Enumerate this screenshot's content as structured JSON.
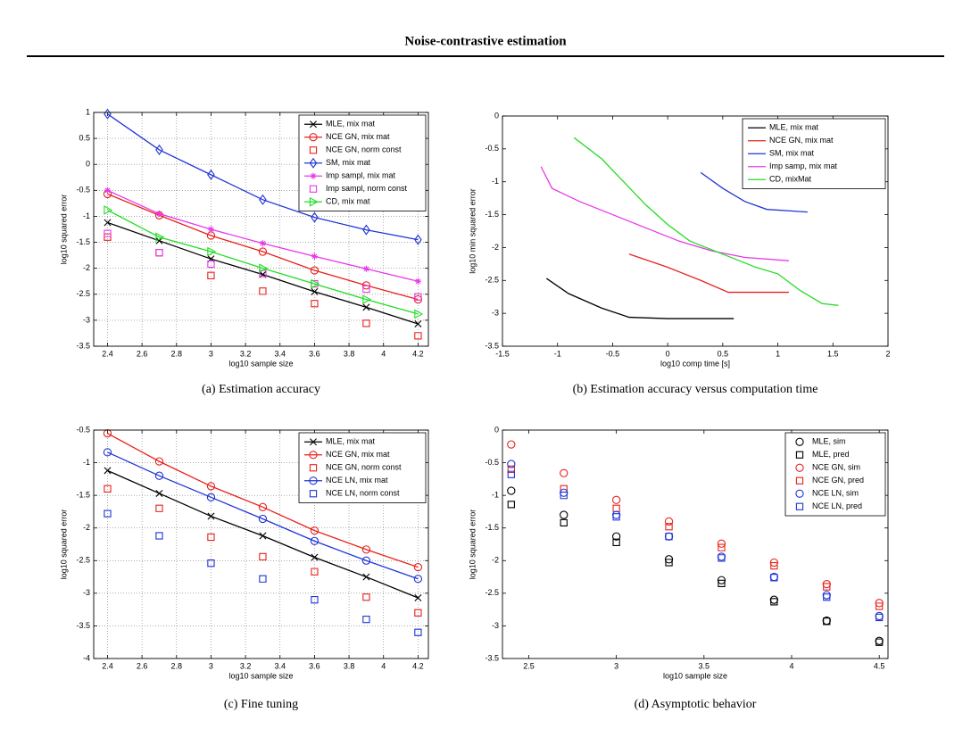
{
  "header": {
    "title": "Noise-contrastive estimation"
  },
  "chart_data": [
    {
      "type": "line",
      "caption": "(a) Estimation accuracy",
      "xlabel": "log10 sample size",
      "ylabel": "log10 squared error",
      "x": [
        2.4,
        2.7,
        3,
        3.3,
        3.6,
        3.9,
        4.2
      ],
      "xlim": [
        2.32,
        4.26
      ],
      "xticks": [
        2.4,
        2.6,
        2.8,
        3,
        3.2,
        3.4,
        3.6,
        3.8,
        4,
        4.2
      ],
      "ylim": [
        -3.5,
        1
      ],
      "yticks": [
        -3.5,
        -3,
        -2.5,
        -2,
        -1.5,
        -1,
        -0.5,
        0,
        0.5,
        1
      ],
      "grid": true,
      "legend": "northeast",
      "series": [
        {
          "name": "MLE, mix mat",
          "color": "#000000",
          "marker": "x",
          "line": true,
          "values": [
            -1.12,
            -1.47,
            -1.82,
            -2.12,
            -2.45,
            -2.75,
            -3.07
          ]
        },
        {
          "name": "NCE GN, mix mat",
          "color": "#e8211b",
          "marker": "o",
          "line": true,
          "values": [
            -0.57,
            -0.98,
            -1.37,
            -1.68,
            -2.04,
            -2.33,
            -2.6
          ]
        },
        {
          "name": "NCE GN, norm const",
          "color": "#e8211b",
          "marker": "s",
          "line": false,
          "values": [
            -1.4,
            -1.7,
            -2.14,
            -2.44,
            -2.68,
            -3.06,
            -3.3
          ]
        },
        {
          "name": "SM, mix mat",
          "color": "#1f35d6",
          "marker": "d",
          "line": true,
          "values": [
            0.97,
            0.28,
            -0.2,
            -0.68,
            -1.02,
            -1.26,
            -1.45
          ]
        },
        {
          "name": "Imp sampl, mix mat",
          "color": "#e838e8",
          "marker": "*",
          "line": true,
          "values": [
            -0.5,
            -0.95,
            -1.25,
            -1.52,
            -1.77,
            -2.01,
            -2.25
          ]
        },
        {
          "name": "Imp sampl, norm const",
          "color": "#e838e8",
          "marker": "s",
          "line": false,
          "values": [
            -1.33,
            -1.7,
            -1.92,
            -2.1,
            -2.3,
            -2.4,
            -2.55
          ]
        },
        {
          "name": "CD, mix mat",
          "color": "#22dd22",
          "marker": ">",
          "line": true,
          "values": [
            -0.88,
            -1.4,
            -1.68,
            -2.0,
            -2.3,
            -2.6,
            -2.88
          ]
        }
      ]
    },
    {
      "type": "line",
      "caption": "(b) Estimation accuracy versus computation time",
      "xlabel": "log10 comp time [s]",
      "ylabel": "log10 min squared error",
      "xlim": [
        -1.5,
        2
      ],
      "xticks": [
        -1.5,
        -1,
        -0.5,
        0,
        0.5,
        1,
        1.5,
        2
      ],
      "ylim": [
        -3.5,
        0
      ],
      "yticks": [
        -3.5,
        -3,
        -2.5,
        -2,
        -1.5,
        -1,
        -0.5,
        0
      ],
      "grid": false,
      "legend": "northeast",
      "series": [
        {
          "name": "MLE, mix mat",
          "color": "#000000",
          "line": true,
          "x": [
            -1.1,
            -0.9,
            -0.6,
            -0.35,
            0,
            0.6
          ],
          "values": [
            -2.47,
            -2.7,
            -2.92,
            -3.06,
            -3.08,
            -3.08
          ]
        },
        {
          "name": "NCE GN, mix mat",
          "color": "#e8211b",
          "line": true,
          "x": [
            -0.35,
            0,
            0.3,
            0.55,
            1.1
          ],
          "values": [
            -2.1,
            -2.3,
            -2.5,
            -2.68,
            -2.68
          ]
        },
        {
          "name": "SM, mix mat",
          "color": "#1f35d6",
          "line": true,
          "x": [
            0.3,
            0.5,
            0.7,
            0.9,
            1.27
          ],
          "values": [
            -0.86,
            -1.1,
            -1.3,
            -1.42,
            -1.46
          ]
        },
        {
          "name": "Imp samp, mix mat",
          "color": "#e838e8",
          "line": true,
          "x": [
            -1.15,
            -1.05,
            -0.8,
            -0.5,
            -0.2,
            0.1,
            0.4,
            0.7,
            1.1
          ],
          "values": [
            -0.77,
            -1.1,
            -1.3,
            -1.5,
            -1.7,
            -1.9,
            -2.05,
            -2.15,
            -2.2
          ]
        },
        {
          "name": "CD, mixMat",
          "color": "#22dd22",
          "line": true,
          "x": [
            -0.85,
            -0.6,
            -0.4,
            -0.2,
            0,
            0.2,
            0.5,
            0.8,
            1.0,
            1.2,
            1.4,
            1.55
          ],
          "values": [
            -0.33,
            -0.65,
            -1.0,
            -1.35,
            -1.65,
            -1.9,
            -2.1,
            -2.3,
            -2.4,
            -2.65,
            -2.85,
            -2.88
          ]
        }
      ]
    },
    {
      "type": "line",
      "caption": "(c) Fine tuning",
      "xlabel": "log10 sample size",
      "ylabel": "log10 squared error",
      "x": [
        2.4,
        2.7,
        3,
        3.3,
        3.6,
        3.9,
        4.2
      ],
      "xlim": [
        2.32,
        4.26
      ],
      "xticks": [
        2.4,
        2.6,
        2.8,
        3,
        3.2,
        3.4,
        3.6,
        3.8,
        4,
        4.2
      ],
      "ylim": [
        -4,
        -0.5
      ],
      "yticks": [
        -4,
        -3.5,
        -3,
        -2.5,
        -2,
        -1.5,
        -1,
        -0.5
      ],
      "grid": true,
      "legend": "northeast",
      "series": [
        {
          "name": "MLE, mix mat",
          "color": "#000000",
          "marker": "x",
          "line": true,
          "values": [
            -1.12,
            -1.47,
            -1.82,
            -2.12,
            -2.45,
            -2.75,
            -3.07
          ]
        },
        {
          "name": "NCE GN, mix mat",
          "color": "#e8211b",
          "marker": "o",
          "line": true,
          "values": [
            -0.55,
            -0.98,
            -1.36,
            -1.68,
            -2.04,
            -2.33,
            -2.6
          ]
        },
        {
          "name": "NCE GN, norm const",
          "color": "#e8211b",
          "marker": "s",
          "line": false,
          "values": [
            -1.4,
            -1.7,
            -2.14,
            -2.44,
            -2.67,
            -3.06,
            -3.3
          ]
        },
        {
          "name": "NCE LN, mix mat",
          "color": "#1f35d6",
          "marker": "o",
          "line": true,
          "values": [
            -0.84,
            -1.2,
            -1.53,
            -1.86,
            -2.2,
            -2.5,
            -2.78
          ]
        },
        {
          "name": "NCE LN, norm const",
          "color": "#1f35d6",
          "marker": "s",
          "line": false,
          "values": [
            -1.78,
            -2.12,
            -2.54,
            -2.78,
            -3.1,
            -3.4,
            -3.6
          ]
        }
      ]
    },
    {
      "type": "scatter",
      "caption": "(d) Asymptotic behavior",
      "xlabel": "log10 sample size",
      "ylabel": "log10 squared error",
      "x": [
        2.4,
        2.7,
        3,
        3.3,
        3.6,
        3.9,
        4.2,
        4.5
      ],
      "xlim": [
        2.35,
        4.55
      ],
      "xticks": [
        2.5,
        3,
        3.5,
        4,
        4.5
      ],
      "ylim": [
        -3.5,
        0
      ],
      "yticks": [
        -3.5,
        -3,
        -2.5,
        -2,
        -1.5,
        -1,
        -0.5,
        0
      ],
      "grid": false,
      "legend": "northeast",
      "series": [
        {
          "name": "MLE, sim",
          "color": "#000000",
          "marker": "o",
          "line": false,
          "values": [
            -0.93,
            -1.3,
            -1.63,
            -1.98,
            -2.3,
            -2.6,
            -2.92,
            -3.23
          ]
        },
        {
          "name": "MLE, pred",
          "color": "#000000",
          "marker": "s",
          "line": false,
          "values": [
            -1.14,
            -1.42,
            -1.72,
            -2.03,
            -2.35,
            -2.63,
            -2.93,
            -3.25
          ]
        },
        {
          "name": "NCE GN, sim",
          "color": "#e8211b",
          "marker": "o",
          "line": false,
          "values": [
            -0.22,
            -0.66,
            -1.07,
            -1.4,
            -1.74,
            -2.03,
            -2.36,
            -2.65
          ]
        },
        {
          "name": "NCE GN, pred",
          "color": "#e8211b",
          "marker": "s",
          "line": false,
          "values": [
            -0.6,
            -0.9,
            -1.2,
            -1.48,
            -1.8,
            -2.08,
            -2.4,
            -2.7
          ]
        },
        {
          "name": "NCE LN, sim",
          "color": "#1f35d6",
          "marker": "o",
          "line": false,
          "values": [
            -0.52,
            -0.96,
            -1.3,
            -1.63,
            -1.94,
            -2.25,
            -2.53,
            -2.85
          ]
        },
        {
          "name": "NCE LN, pred",
          "color": "#1f35d6",
          "marker": "s",
          "line": false,
          "values": [
            -0.68,
            -1.0,
            -1.33,
            -1.63,
            -1.96,
            -2.26,
            -2.56,
            -2.87
          ]
        }
      ]
    }
  ]
}
